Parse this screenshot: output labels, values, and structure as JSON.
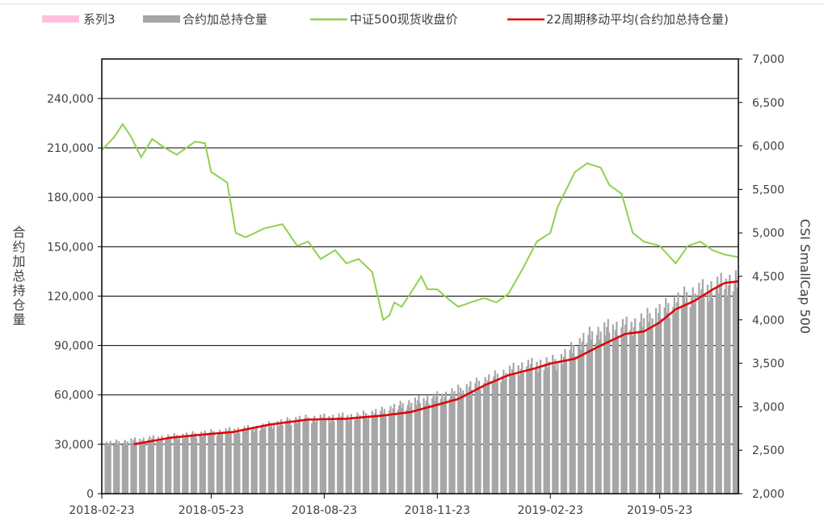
{
  "chart_data": {
    "type": "bar",
    "legend_position": "top",
    "legend": [
      {
        "name": "系列3",
        "kind": "box",
        "color": "#ffc0e0"
      },
      {
        "name": "合约加总持仓量",
        "kind": "box",
        "color": "#a6a6a6"
      },
      {
        "name": "中证500现货收盘价",
        "kind": "line",
        "color": "#8fd14f"
      },
      {
        "name": "22周期移动平均(合约加总持仓量)",
        "kind": "line",
        "color": "#e00000"
      }
    ],
    "y_left": {
      "label": "合约加总持仓量",
      "min": 0,
      "max": 264000,
      "ticks": [
        0,
        30000,
        60000,
        90000,
        120000,
        150000,
        180000,
        210000,
        240000
      ],
      "tick_labels": [
        "0",
        "30,000",
        "60,000",
        "90,000",
        "120,000",
        "150,000",
        "180,000",
        "210,000",
        "240,000"
      ]
    },
    "y_right": {
      "label": "CSI SmallCap 500",
      "min": 2000,
      "max": 7000,
      "ticks": [
        2000,
        2500,
        3000,
        3500,
        4000,
        4500,
        5000,
        5500,
        6000,
        6500,
        7000
      ],
      "tick_labels": [
        "2,000",
        "2,500",
        "3,000",
        "3,500",
        "4,000",
        "4,500",
        "5,000",
        "5,500",
        "6,000",
        "6,500",
        "7,000"
      ]
    },
    "x_axis": {
      "start": "2018-02-23",
      "end": "2019-07-26",
      "ticks": [
        "2018-02-23",
        "2018-05-23",
        "2018-08-23",
        "2018-11-23",
        "2019-02-23",
        "2019-05-23"
      ]
    },
    "grid": true,
    "open_interest": {
      "name": "合约加总持仓量",
      "dates": [
        "2018-02-23",
        "2018-03-31",
        "2018-05-10",
        "2018-06-30",
        "2018-07-31",
        "2018-09-20",
        "2018-10-10",
        "2018-11-01",
        "2018-12-01",
        "2018-12-31",
        "2019-01-31",
        "2019-03-01",
        "2019-03-25",
        "2019-04-10",
        "2019-05-01",
        "2019-05-23",
        "2019-06-15",
        "2019-07-26"
      ],
      "values": [
        30000,
        33000,
        36000,
        40000,
        45000,
        47000,
        50000,
        55000,
        60000,
        68000,
        77000,
        80000,
        95000,
        100000,
        102000,
        110000,
        120000,
        130000
      ]
    },
    "moving_average": {
      "name": "22周期移动平均(合约加总持仓量)",
      "dates": [
        "2018-03-21",
        "2018-04-20",
        "2018-05-10",
        "2018-06-10",
        "2018-07-10",
        "2018-08-10",
        "2018-09-10",
        "2018-10-10",
        "2018-11-01",
        "2018-11-23",
        "2018-12-10",
        "2019-01-01",
        "2019-01-20",
        "2019-02-10",
        "2019-02-23",
        "2019-03-15",
        "2019-04-05",
        "2019-04-25",
        "2019-05-10",
        "2019-05-23",
        "2019-06-05",
        "2019-06-20",
        "2019-07-05",
        "2019-07-15",
        "2019-07-26"
      ],
      "values": [
        30000,
        34000,
        35500,
        37500,
        42000,
        45000,
        45500,
        47500,
        49500,
        54000,
        57500,
        66000,
        72000,
        76000,
        79000,
        82000,
        90000,
        97000,
        98500,
        104000,
        112000,
        117000,
        124000,
        128000,
        129000
      ]
    },
    "csi500": {
      "name": "中证500现货收盘价",
      "dates": [
        "2018-02-23",
        "2018-03-05",
        "2018-03-12",
        "2018-03-19",
        "2018-03-27",
        "2018-04-05",
        "2018-04-15",
        "2018-04-25",
        "2018-05-10",
        "2018-05-18",
        "2018-05-23",
        "2018-06-05",
        "2018-06-12",
        "2018-06-20",
        "2018-07-05",
        "2018-07-20",
        "2018-08-01",
        "2018-08-10",
        "2018-08-20",
        "2018-09-01",
        "2018-09-10",
        "2018-09-20",
        "2018-10-01",
        "2018-10-10",
        "2018-10-15",
        "2018-10-19",
        "2018-10-25",
        "2018-11-01",
        "2018-11-10",
        "2018-11-15",
        "2018-11-23",
        "2018-12-01",
        "2018-12-10",
        "2018-12-20",
        "2018-12-31",
        "2019-01-10",
        "2019-01-20",
        "2019-02-01",
        "2019-02-12",
        "2019-02-23",
        "2019-03-01",
        "2019-03-08",
        "2019-03-15",
        "2019-03-25",
        "2019-04-05",
        "2019-04-12",
        "2019-04-22",
        "2019-05-01",
        "2019-05-10",
        "2019-05-23",
        "2019-06-05",
        "2019-06-15",
        "2019-06-25",
        "2019-07-05",
        "2019-07-15",
        "2019-07-26"
      ],
      "values": [
        5950,
        6100,
        6250,
        6100,
        5870,
        6080,
        5980,
        5900,
        6050,
        6030,
        5700,
        5580,
        5000,
        4950,
        5050,
        5100,
        4850,
        4900,
        4700,
        4800,
        4650,
        4700,
        4550,
        4000,
        4050,
        4200,
        4150,
        4300,
        4500,
        4350,
        4350,
        4250,
        4150,
        4200,
        4250,
        4200,
        4300,
        4600,
        4900,
        5000,
        5300,
        5500,
        5700,
        5800,
        5750,
        5550,
        5450,
        5000,
        4900,
        4850,
        4650,
        4850,
        4900,
        4800,
        4750,
        4720
      ]
    }
  }
}
